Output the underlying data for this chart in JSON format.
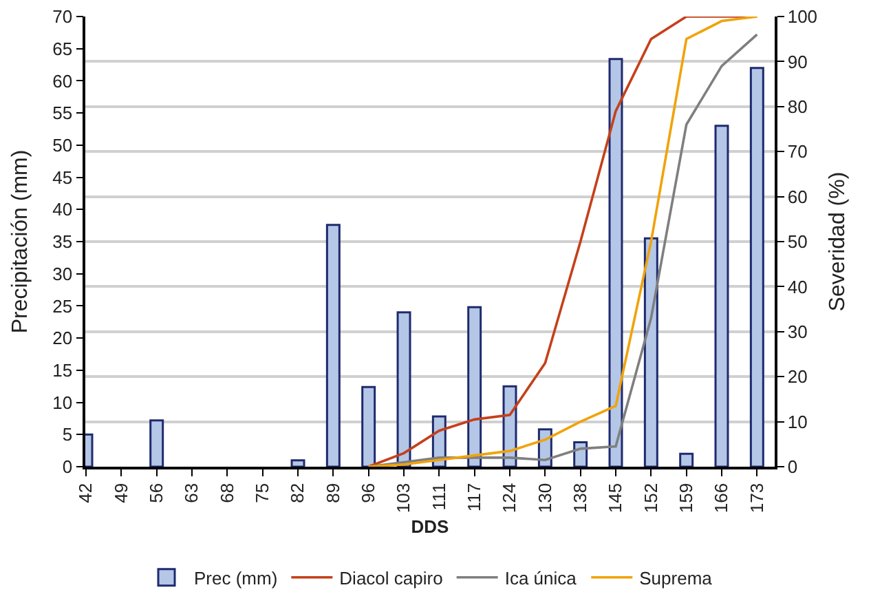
{
  "chart_data": {
    "type": "bar",
    "xlabel": "DDS",
    "ylabel": "Precipitación (mm)",
    "y2label": "Severidad (%)",
    "categories": [
      "42",
      "49",
      "56",
      "63",
      "68",
      "75",
      "82",
      "89",
      "96",
      "103",
      "111",
      "117",
      "124",
      "130",
      "138",
      "145",
      "152",
      "159",
      "166",
      "173"
    ],
    "series": [
      {
        "name": "Prec (mm)",
        "color": "#b4c7e7",
        "values": [
          5,
          null,
          7.2,
          null,
          null,
          null,
          1,
          37.6,
          12.4,
          24,
          7.8,
          24.8,
          12.5,
          5.8,
          3.8,
          63.4,
          35.5,
          2,
          53,
          62
        ]
      },
      {
        "name": "Diacol capiro",
        "type": "line",
        "axis": "y2",
        "color": "#c5401a",
        "values": [
          null,
          null,
          null,
          null,
          null,
          null,
          null,
          null,
          0,
          3,
          8,
          10.5,
          11.5,
          23,
          50,
          79,
          95,
          100,
          100,
          100
        ]
      },
      {
        "name": "Ica única",
        "type": "line",
        "axis": "y2",
        "color": "#7f7f7f",
        "values": [
          null,
          null,
          null,
          null,
          null,
          null,
          null,
          null,
          0,
          1,
          2,
          2,
          2,
          1.5,
          4,
          4.5,
          33,
          76,
          89,
          96
        ]
      },
      {
        "name": "Suprema",
        "type": "line",
        "axis": "y2",
        "color": "#f0a30a",
        "values": [
          null,
          null,
          null,
          null,
          null,
          null,
          null,
          null,
          0,
          0.5,
          1.5,
          2.5,
          3.5,
          6,
          10,
          13.5,
          50,
          95,
          99,
          100
        ]
      }
    ],
    "ylim": [
      0,
      70
    ],
    "yticks": [
      0,
      5,
      10,
      15,
      20,
      25,
      30,
      35,
      40,
      45,
      50,
      55,
      60,
      65,
      70
    ],
    "y2lim": [
      0,
      100
    ],
    "y2ticks": [
      0,
      10,
      20,
      30,
      40,
      50,
      60,
      70,
      80,
      90,
      100
    ],
    "grid": "y",
    "legend": "bottom",
    "marker": "none",
    "line_style": "solid"
  }
}
